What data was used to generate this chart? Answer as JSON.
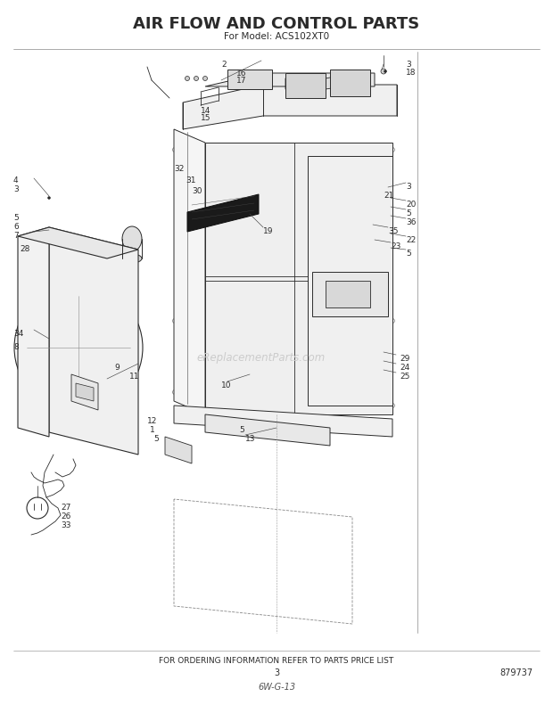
{
  "title": "AIR FLOW AND CONTROL PARTS",
  "subtitle": "For Model: ACS102XT0",
  "footer_text": "FOR ORDERING INFORMATION REFER TO PARTS PRICE LIST",
  "page_num": "3",
  "part_num": "879737",
  "handwritten": "6W-G-13",
  "bg_color": "#ffffff",
  "line_color": "#2a2a2a",
  "watermark": "eReplacementParts.com",
  "title_fontsize": 13,
  "subtitle_fontsize": 7.5,
  "footer_fontsize": 6.5
}
